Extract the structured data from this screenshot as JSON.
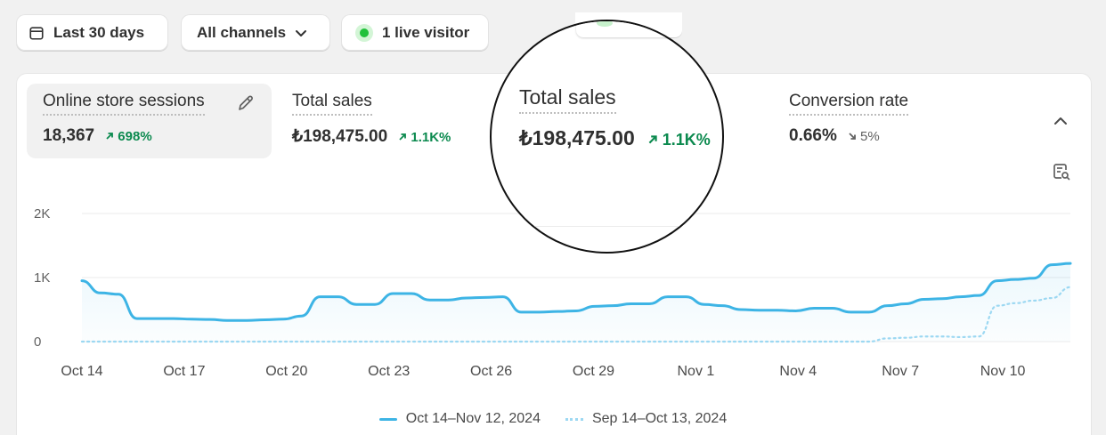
{
  "filters": {
    "date_range": "Last 30 days",
    "channels": "All channels",
    "live_visitors": "1 live visitor"
  },
  "metrics": [
    {
      "label": "Online store sessions",
      "value": "18,367",
      "change": "698%",
      "direction": "up"
    },
    {
      "label": "Total sales",
      "value": "₺198,475.00",
      "change": "1.1K%",
      "direction": "up"
    },
    {
      "label": "Conversion rate",
      "value": "0.66%",
      "change": "5%",
      "direction": "down"
    }
  ],
  "magnified": {
    "label": "Total sales",
    "value": "₺198,475.00",
    "change": "1.1K%"
  },
  "colors": {
    "current": "#3db4e5",
    "previous": "#9cd8f2",
    "up": "#0c8a4f",
    "live_dot": "#21c13b"
  },
  "chart_data": {
    "type": "line",
    "y_ticks": [
      "2K",
      "1K",
      "0"
    ],
    "ylim": [
      0,
      2000
    ],
    "x_ticks": [
      "Oct 14",
      "Oct 17",
      "Oct 20",
      "Oct 23",
      "Oct 26",
      "Oct 29",
      "Nov 1",
      "Nov 4",
      "Nov 7",
      "Nov 10"
    ],
    "series": [
      {
        "name": "Oct 14–Nov 12, 2024",
        "style": "solid",
        "values": [
          950,
          760,
          740,
          360,
          360,
          360,
          350,
          345,
          330,
          330,
          340,
          350,
          400,
          700,
          700,
          580,
          580,
          750,
          750,
          650,
          650,
          680,
          690,
          700,
          460,
          460,
          470,
          480,
          550,
          560,
          590,
          590,
          700,
          700,
          580,
          560,
          500,
          490,
          490,
          480,
          520,
          520,
          460,
          460,
          560,
          590,
          660,
          670,
          700,
          720,
          950,
          970,
          990,
          1200,
          1220
        ]
      },
      {
        "name": "Sep 14–Oct 13, 2024",
        "style": "dotted",
        "values": [
          0,
          0,
          0,
          0,
          0,
          0,
          0,
          0,
          0,
          0,
          0,
          0,
          0,
          0,
          0,
          0,
          0,
          0,
          0,
          0,
          0,
          0,
          0,
          0,
          0,
          0,
          0,
          0,
          0,
          0,
          0,
          0,
          0,
          0,
          0,
          0,
          0,
          0,
          0,
          0,
          0,
          0,
          0,
          0,
          50,
          60,
          80,
          80,
          70,
          80,
          560,
          600,
          640,
          680,
          850
        ]
      }
    ]
  }
}
